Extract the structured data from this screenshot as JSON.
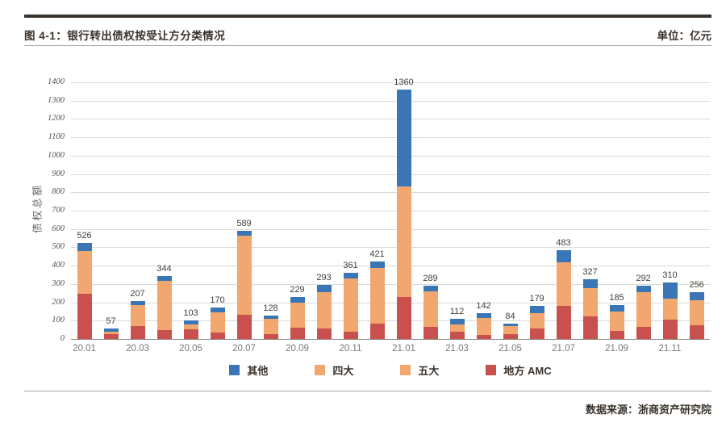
{
  "page": {
    "title": "图 4-1：银行转出债权按受让方分类情况",
    "unit_label": "单位：亿元",
    "source_label": "数据来源：浙商资产研究院"
  },
  "chart_data": {
    "type": "bar",
    "stacked": true,
    "title": "银行转出债权按受让方分类情况",
    "ylabel": "债权总额",
    "unit": "亿元",
    "ylim": [
      0,
      1400
    ],
    "y_tick_step": 100,
    "grid": true,
    "legend_position": "bottom",
    "categories": [
      "20.01",
      "20.02",
      "20.03",
      "20.04",
      "20.05",
      "20.06",
      "20.07",
      "20.08",
      "20.09",
      "20.10",
      "20.11",
      "20.12",
      "21.01",
      "21.02",
      "21.03",
      "21.04",
      "21.05",
      "21.06",
      "21.07",
      "21.08",
      "21.09",
      "21.10",
      "21.11",
      "21.12"
    ],
    "x_tick_labels": [
      "20.01",
      "20.03",
      "20.05",
      "20.07",
      "20.09",
      "20.11",
      "21.01",
      "21.03",
      "21.05",
      "21.07",
      "21.09",
      "21.11"
    ],
    "totals": [
      526,
      57,
      207,
      344,
      103,
      170,
      589,
      128,
      229,
      293,
      361,
      421,
      1360,
      289,
      112,
      142,
      84,
      179,
      483,
      327,
      185,
      292,
      310,
      256
    ],
    "series": [
      {
        "name": "地方AMC",
        "color": "#c8504f",
        "values": [
          248,
          28,
          70,
          50,
          51,
          35,
          130,
          27,
          60,
          58,
          38,
          84,
          230,
          64,
          38,
          21,
          25,
          57,
          180,
          123,
          42,
          65,
          107,
          73
        ]
      },
      {
        "name": "四大/五大",
        "color": "#f2a76e",
        "values": [
          233,
          12,
          115,
          266,
          29,
          112,
          435,
          85,
          140,
          196,
          294,
          303,
          600,
          197,
          43,
          94,
          45,
          85,
          238,
          156,
          106,
          190,
          115,
          140
        ]
      },
      {
        "name": "其他",
        "color": "#3a76b5",
        "values": [
          45,
          17,
          22,
          28,
          23,
          23,
          24,
          16,
          29,
          39,
          29,
          34,
          530,
          28,
          31,
          27,
          14,
          37,
          65,
          48,
          37,
          37,
          88,
          43
        ]
      }
    ],
    "legend": [
      {
        "label": "其他",
        "color": "#3a76b5"
      },
      {
        "label": "四大",
        "color": "#f2a76e"
      },
      {
        "label": "五大",
        "color": "#f2a76e"
      },
      {
        "label": "地方 AMC",
        "color": "#c8504f"
      }
    ]
  }
}
